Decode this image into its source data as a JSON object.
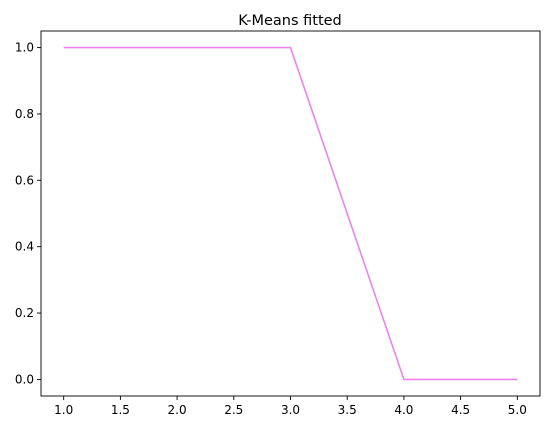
{
  "chart_data": {
    "type": "line",
    "title": "K-Means fitted",
    "xlabel": "",
    "ylabel": "",
    "x": [
      1,
      2,
      3,
      4,
      5
    ],
    "series": [
      {
        "values": [
          1,
          1,
          1,
          0,
          0
        ],
        "color": "#ee82ee"
      }
    ],
    "xlim": [
      0.8,
      5.2
    ],
    "ylim": [
      -0.05,
      1.05
    ],
    "x_ticks": [
      "1.0",
      "1.5",
      "2.0",
      "2.5",
      "3.0",
      "3.5",
      "4.0",
      "4.5",
      "5.0"
    ],
    "y_ticks": [
      "0.0",
      "0.2",
      "0.4",
      "0.6",
      "0.8",
      "1.0"
    ],
    "grid": false,
    "legend": "none"
  }
}
